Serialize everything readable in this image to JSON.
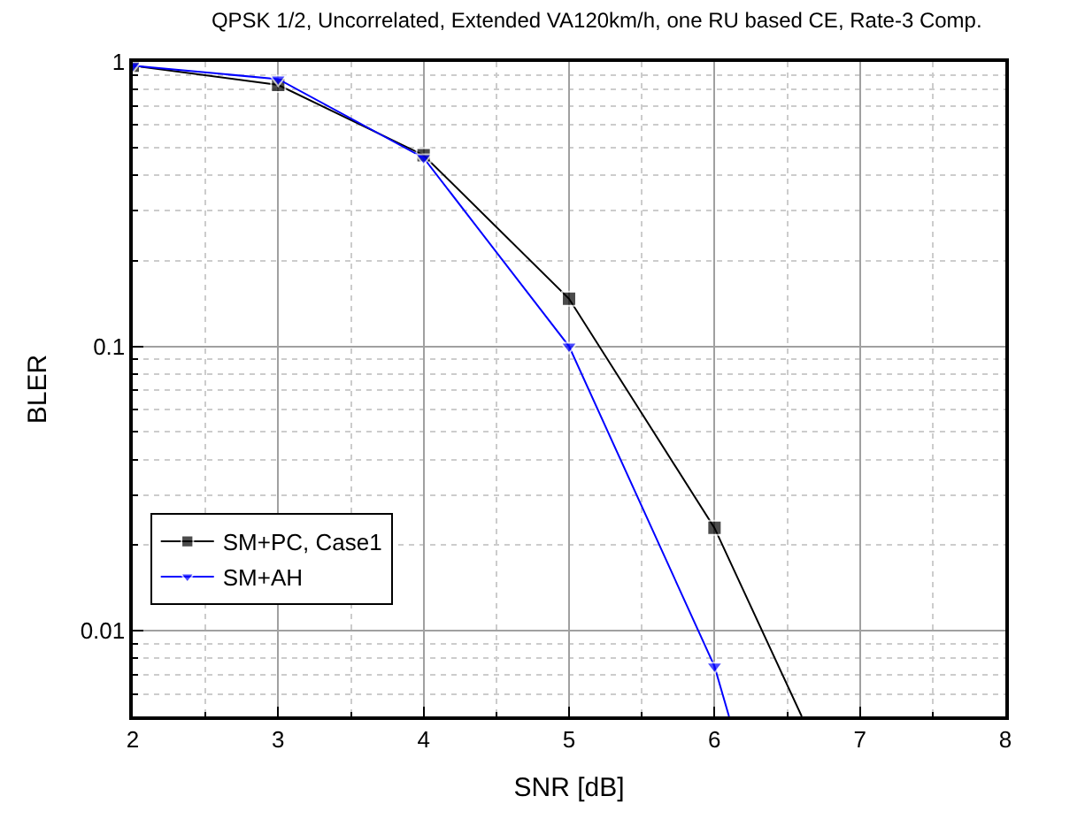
{
  "chart_data": {
    "type": "line",
    "title": "QPSK 1/2, Uncorrelated, Extended VA120km/h, one RU based CE, Rate-3 Comp.",
    "xlabel": "SNR [dB]",
    "ylabel": "BLER",
    "series": [
      {
        "name": "SM+PC, Case1",
        "color": "#000000",
        "marker": "square",
        "x": [
          2,
          3,
          4,
          5,
          6,
          6.6
        ],
        "values": [
          0.97,
          0.83,
          0.47,
          0.147,
          0.023,
          0.005
        ]
      },
      {
        "name": "SM+AH",
        "color": "#0000ff",
        "marker": "triangle-down",
        "x": [
          2,
          3,
          4,
          5,
          6,
          6.1
        ],
        "values": [
          0.97,
          0.87,
          0.46,
          0.1,
          0.0075,
          0.005
        ]
      }
    ],
    "xlim": [
      2,
      8
    ],
    "xticks": [
      2,
      3,
      4,
      5,
      6,
      7,
      8
    ],
    "ylim": [
      0.005,
      1
    ],
    "yticks": [
      0.01,
      0.1,
      1
    ],
    "log": "y",
    "grid": true,
    "legend": "bottom left",
    "line_style": "solid"
  }
}
